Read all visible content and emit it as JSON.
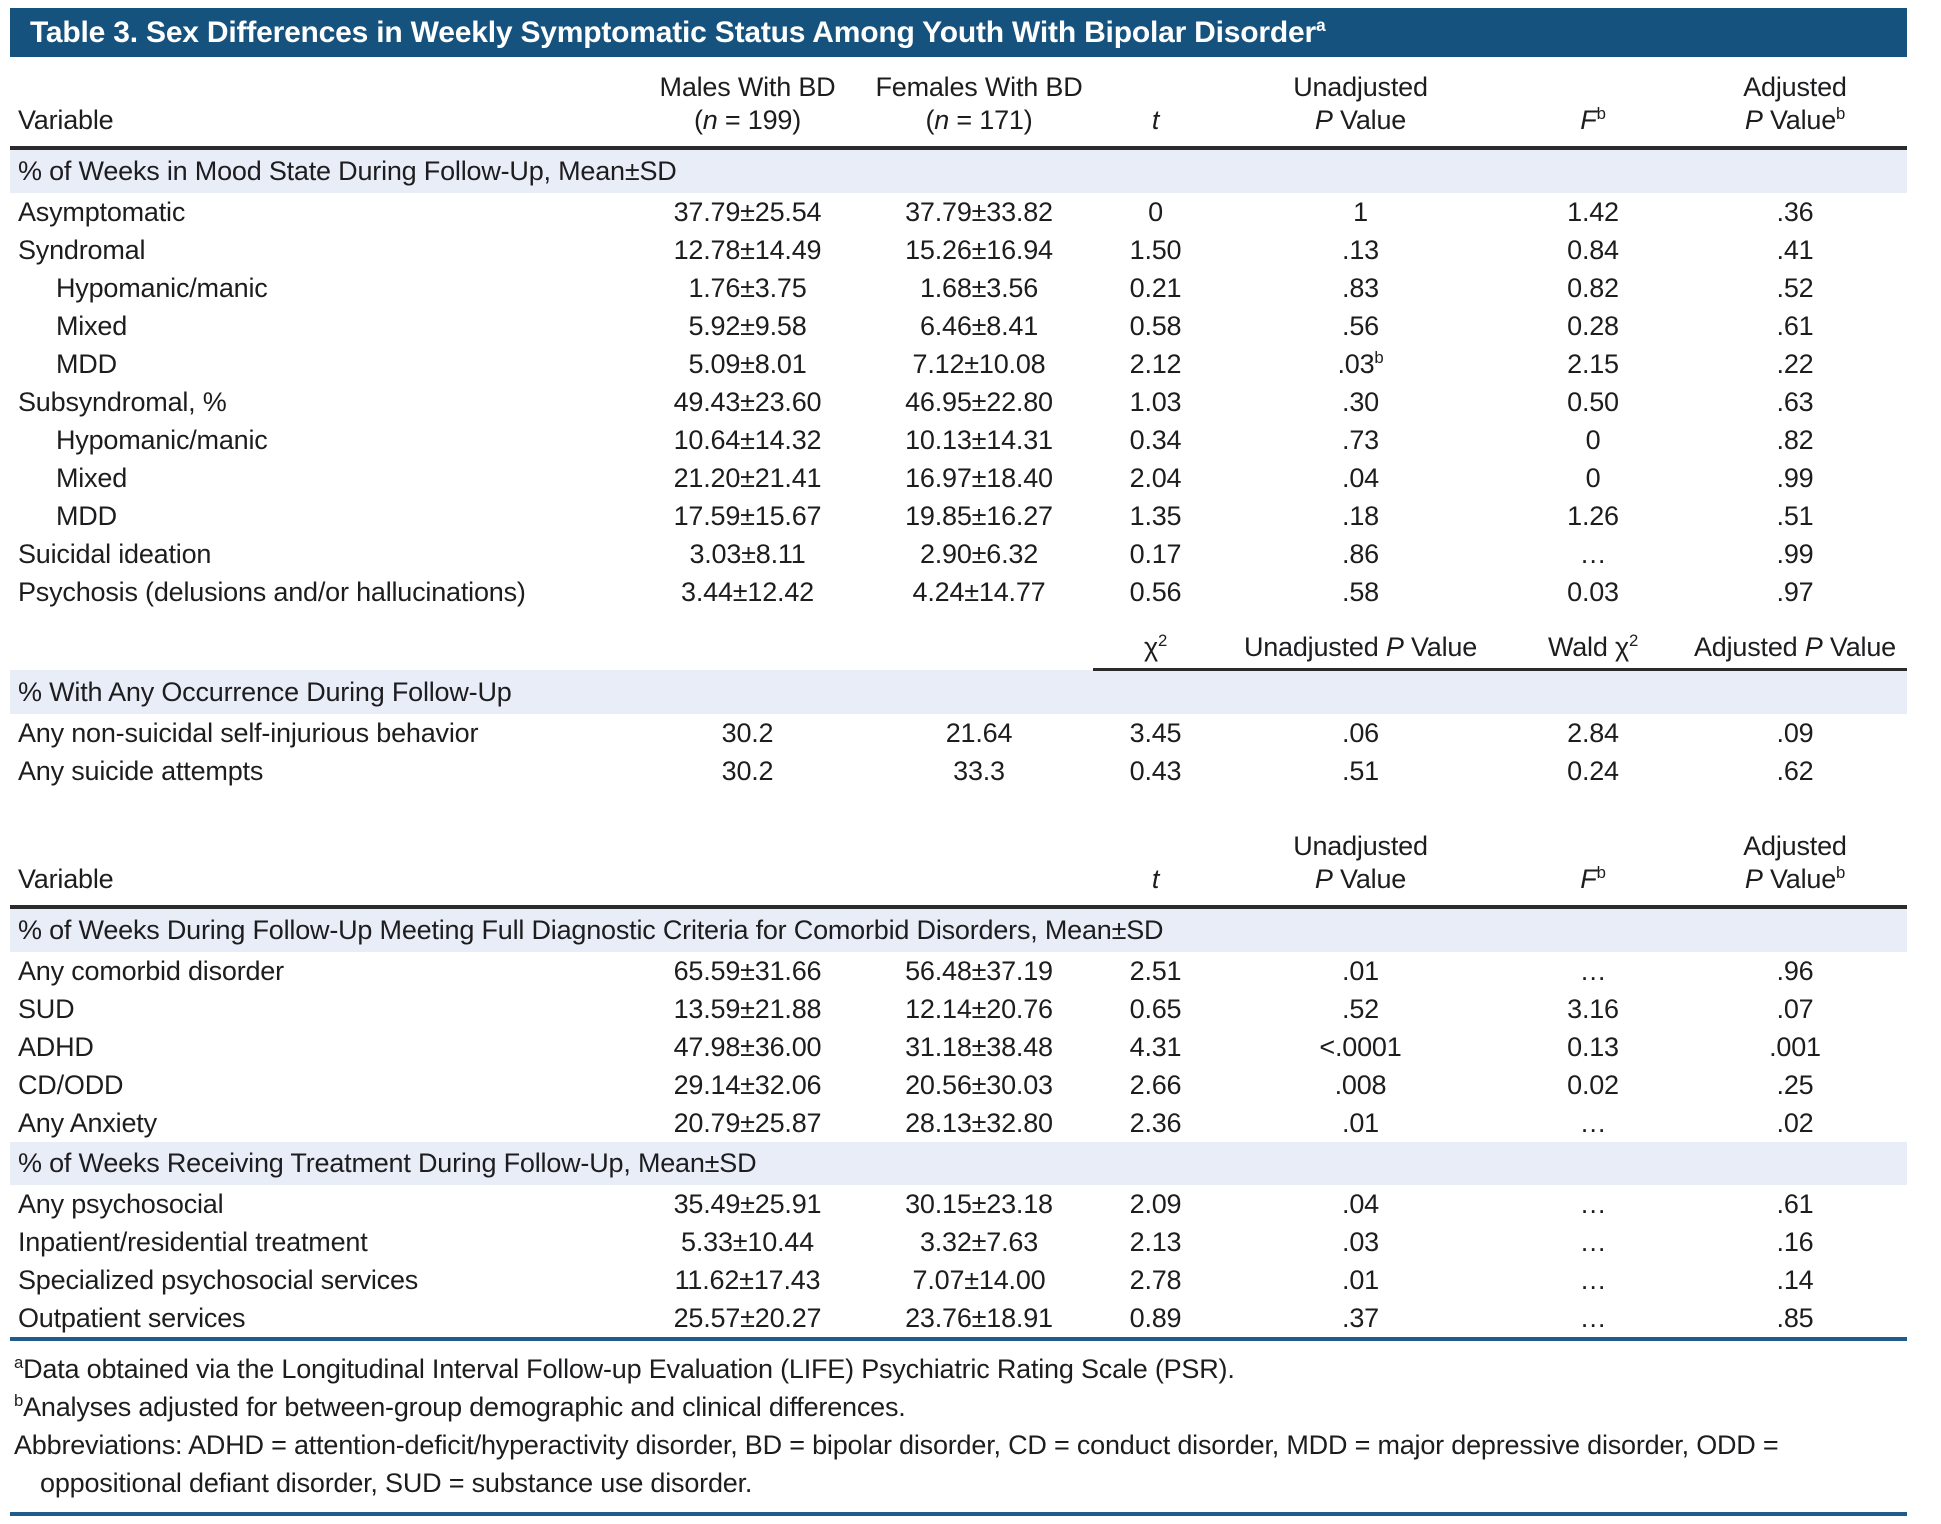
{
  "title": {
    "text": "Table 3. Sex Differences in Weekly Symptomatic Status Among Youth With Bipolar Disorder",
    "footnote_marker": "a"
  },
  "colors": {
    "title_bar": "#15527E",
    "section_band": "#E9EDF8",
    "header_rule": "#2B2B2B",
    "blue_rule": "#1F5C8C",
    "text": "#1D1D1F"
  },
  "labels": {
    "variable": "Variable",
    "males_1": "Males With BD",
    "paren": "(",
    "n": "n",
    "males_n": "= 199)",
    "females_1": "Females With BD",
    "females_n": "= 171)",
    "t": "t",
    "unadjusted": "Unadjusted",
    "adjusted": "Adjusted",
    "p": "P",
    "value": "Value",
    "f": "F",
    "b": "b",
    "chi": "χ",
    "two": "2",
    "wald": "Wald"
  },
  "sections": [
    {
      "heading": "% of Weeks in Mood State During Follow-Up, Mean±SD",
      "rows": [
        {
          "label": "Asymptomatic",
          "indent": 0,
          "values": [
            "37.79±25.54",
            "37.79±33.82",
            "0",
            "1",
            "1.42",
            ".36"
          ]
        },
        {
          "label": "Syndromal",
          "indent": 0,
          "values": [
            "12.78±14.49",
            "15.26±16.94",
            "1.50",
            ".13",
            "0.84",
            ".41"
          ]
        },
        {
          "label": "Hypomanic/manic",
          "indent": 1,
          "values": [
            "1.76±3.75",
            "1.68±3.56",
            "0.21",
            ".83",
            "0.82",
            ".52"
          ]
        },
        {
          "label": "Mixed",
          "indent": 1,
          "values": [
            "5.92±9.58",
            "6.46±8.41",
            "0.58",
            ".56",
            "0.28",
            ".61"
          ]
        },
        {
          "label": "MDD",
          "indent": 1,
          "values": [
            "5.09±8.01",
            "7.12±10.08",
            "2.12",
            ".03",
            "2.15",
            ".22"
          ],
          "sup": {
            "3": "b"
          }
        },
        {
          "label": "Subsyndromal, %",
          "indent": 0,
          "values": [
            "49.43±23.60",
            "46.95±22.80",
            "1.03",
            ".30",
            "0.50",
            ".63"
          ]
        },
        {
          "label": "Hypomanic/manic",
          "indent": 1,
          "values": [
            "10.64±14.32",
            "10.13±14.31",
            "0.34",
            ".73",
            "0",
            ".82"
          ]
        },
        {
          "label": "Mixed",
          "indent": 1,
          "values": [
            "21.20±21.41",
            "16.97±18.40",
            "2.04",
            ".04",
            "0",
            ".99"
          ]
        },
        {
          "label": "MDD",
          "indent": 1,
          "values": [
            "17.59±15.67",
            "19.85±16.27",
            "1.35",
            ".18",
            "1.26",
            ".51"
          ]
        },
        {
          "label": "Suicidal ideation",
          "indent": 0,
          "values": [
            "3.03±8.11",
            "2.90±6.32",
            "0.17",
            ".86",
            "…",
            ".99"
          ]
        },
        {
          "label": "Psychosis (delusions and/or hallucinations)",
          "indent": 0,
          "values": [
            "3.44±12.42",
            "4.24±14.77",
            "0.56",
            ".58",
            "0.03",
            ".97"
          ]
        }
      ]
    },
    {
      "heading": "% With Any Occurrence During Follow-Up",
      "rows": [
        {
          "label": "Any non-suicidal self-injurious behavior",
          "indent": 0,
          "values": [
            "30.2",
            "21.64",
            "3.45",
            ".06",
            "2.84",
            ".09"
          ]
        },
        {
          "label": "Any suicide attempts",
          "indent": 0,
          "values": [
            "30.2",
            "33.3",
            "0.43",
            ".51",
            "0.24",
            ".62"
          ]
        }
      ]
    },
    {
      "heading": "% of Weeks During Follow-Up Meeting Full Diagnostic Criteria for Comorbid Disorders, Mean±SD",
      "rows": [
        {
          "label": "Any comorbid disorder",
          "indent": 0,
          "values": [
            "65.59±31.66",
            "56.48±37.19",
            "2.51",
            ".01",
            "…",
            ".96"
          ]
        },
        {
          "label": "SUD",
          "indent": 0,
          "values": [
            "13.59±21.88",
            "12.14±20.76",
            "0.65",
            ".52",
            "3.16",
            ".07"
          ]
        },
        {
          "label": "ADHD",
          "indent": 0,
          "values": [
            "47.98±36.00",
            "31.18±38.48",
            "4.31",
            "<.0001",
            "0.13",
            ".001"
          ]
        },
        {
          "label": "CD/ODD",
          "indent": 0,
          "values": [
            "29.14±32.06",
            "20.56±30.03",
            "2.66",
            ".008",
            "0.02",
            ".25"
          ]
        },
        {
          "label": "Any Anxiety",
          "indent": 0,
          "values": [
            "20.79±25.87",
            "28.13±32.80",
            "2.36",
            ".01",
            "…",
            ".02"
          ]
        }
      ]
    },
    {
      "heading": "% of Weeks Receiving Treatment During Follow-Up, Mean±SD",
      "rows": [
        {
          "label": "Any psychosocial",
          "indent": 0,
          "values": [
            "35.49±25.91",
            "30.15±23.18",
            "2.09",
            ".04",
            "…",
            ".61"
          ]
        },
        {
          "label": "Inpatient/residential treatment",
          "indent": 0,
          "values": [
            "5.33±10.44",
            "3.32±7.63",
            "2.13",
            ".03",
            "…",
            ".16"
          ]
        },
        {
          "label": "Specialized psychosocial services",
          "indent": 0,
          "values": [
            "11.62±17.43",
            "7.07±14.00",
            "2.78",
            ".01",
            "…",
            ".14"
          ]
        },
        {
          "label": "Outpatient services",
          "indent": 0,
          "values": [
            "25.57±20.27",
            "23.76±18.91",
            "0.89",
            ".37",
            "…",
            ".85"
          ]
        }
      ]
    }
  ],
  "footnotes": {
    "a_marker": "a",
    "a_text": "Data obtained via the Longitudinal Interval Follow-up Evaluation (LIFE) Psychiatric Rating Scale (PSR).",
    "b_marker": "b",
    "b_text": "Analyses adjusted for between-group demographic and clinical differences.",
    "abbreviations": "Abbreviations: ADHD = attention-deficit/hyperactivity disorder, BD = bipolar disorder, CD = conduct disorder, MDD = major depressive disorder, ODD = oppositional defiant disorder, SUD = substance use disorder."
  }
}
